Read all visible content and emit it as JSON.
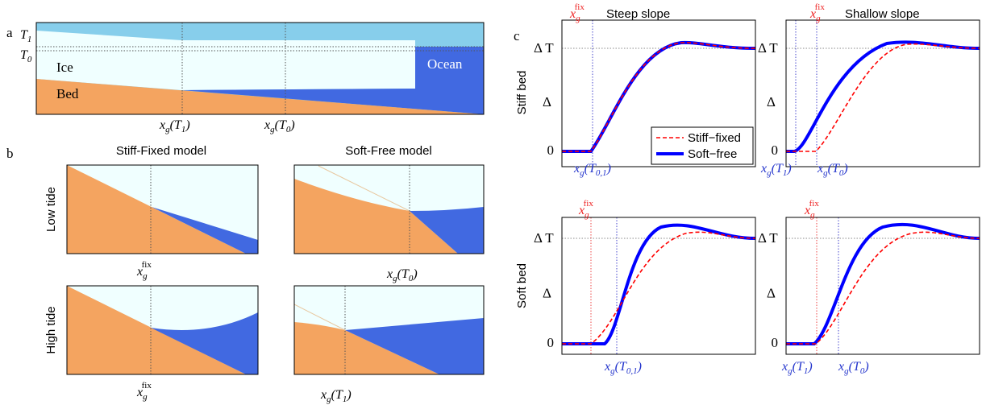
{
  "panel_a": {
    "label": "a",
    "t1": {
      "text": "T",
      "sub": "1"
    },
    "t0": {
      "text": "T",
      "sub": "0"
    },
    "ice": "Ice",
    "ocean": "Ocean",
    "bed": "Bed",
    "x_labels": [
      {
        "text": "x",
        "sub": "g",
        "tail": "(T",
        "tail_sub": "1",
        "end": ")"
      },
      {
        "text": "x",
        "sub": "g",
        "tail": "(T",
        "tail_sub": "0",
        "end": ")"
      }
    ]
  },
  "panel_b": {
    "label": "b",
    "col_titles": [
      "Stiff-Fixed model",
      "Soft-Free model"
    ],
    "row_titles": [
      "Low tide",
      "High tide"
    ],
    "x_labels": [
      {
        "text": "x",
        "sub": "g",
        "sup": "fix"
      },
      {
        "text": "x",
        "sub": "g",
        "tail": "(T",
        "tail_sub": "0",
        "end": ")"
      },
      {
        "text": "x",
        "sub": "g",
        "sup": "fix"
      },
      {
        "text": "x",
        "sub": "g",
        "tail": "(T",
        "tail_sub": "1",
        "end": ")"
      }
    ]
  },
  "panel_c": {
    "label": "c",
    "col_titles": [
      "Steep slope",
      "Shallow slope"
    ],
    "row_titles": [
      "Stiff bed",
      "Soft bed"
    ],
    "legend": [
      "Stiff−fixed",
      "Soft−free"
    ],
    "plots": [
      {
        "fix_label": {
          "text": "x",
          "sub": "g",
          "sup": "fix"
        },
        "y_top": "Δ T",
        "y_mid": "Δ",
        "y_zero": "0",
        "x_labels": [
          {
            "text": "x",
            "sub": "g",
            "tail": "(T",
            "tail_sub": "0,1",
            "end": ")"
          }
        ]
      },
      {
        "fix_label": {
          "text": "x",
          "sub": "g",
          "sup": "fix"
        },
        "y_top": "Δ T",
        "y_mid": "Δ",
        "y_zero": "0",
        "x_labels": [
          {
            "text": "x",
            "sub": "g",
            "tail": "(T",
            "tail_sub": "1",
            "end": ")"
          },
          {
            "text": "x",
            "sub": "g",
            "tail": "(T",
            "tail_sub": "0",
            "end": ")"
          }
        ]
      },
      {
        "fix_label": {
          "text": "x",
          "sub": "g",
          "sup": "fix"
        },
        "y_top": "Δ T",
        "y_mid": "Δ",
        "y_zero": "0",
        "x_labels": [
          {
            "text": "x",
            "sub": "g",
            "tail": "(T",
            "tail_sub": "0,1",
            "end": ")"
          }
        ]
      },
      {
        "fix_label": {
          "text": "x",
          "sub": "g",
          "sup": "fix"
        },
        "y_top": "Δ T",
        "y_mid": "Δ",
        "y_zero": "0",
        "x_labels": [
          {
            "text": "x",
            "sub": "g",
            "tail": "(T",
            "tail_sub": "1",
            "end": ")"
          },
          {
            "text": "x",
            "sub": "g",
            "tail": "(T",
            "tail_sub": "0",
            "end": ")"
          }
        ]
      }
    ]
  }
}
